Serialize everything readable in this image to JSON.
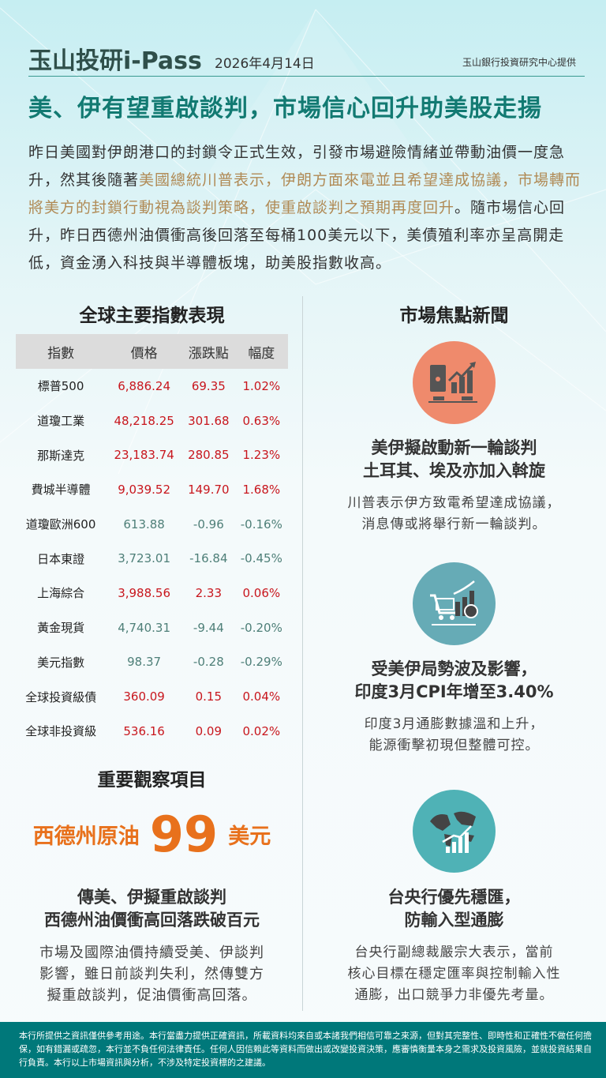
{
  "header": {
    "title": "玉山投研i-Pass",
    "date": "2026年4月14日",
    "source": "玉山銀行投資研究中心提供"
  },
  "headline": "美、伊有望重啟談判，市場信心回升助美股走揚",
  "summary": {
    "p1": "昨日美國對伊朗港口的封鎖令正式生效，引發市場避險情緒並帶動油價一度急升，然其後隨著",
    "highlight": "美國總統川普表示，伊朗方面來電並且希望達成協議，市場轉而將美方的封鎖行動視為談判策略，使重啟談判之預期再度回升",
    "p2": "。隨市場信心回升，昨日西德州油價衝高後回落至每桶100美元以下，美債殖利率亦呈高開走低，資金湧入科技與半導體板塊，助美股指數收高。"
  },
  "indices": {
    "title": "全球主要指數表現",
    "columns": [
      "指數",
      "價格",
      "漲跌點",
      "幅度"
    ],
    "rows": [
      {
        "name": "標普500",
        "price": "6,886.24",
        "change": "69.35",
        "pct": "1.02%",
        "dir": "up"
      },
      {
        "name": "道瓊工業",
        "price": "48,218.25",
        "change": "301.68",
        "pct": "0.63%",
        "dir": "up"
      },
      {
        "name": "那斯達克",
        "price": "23,183.74",
        "change": "280.85",
        "pct": "1.23%",
        "dir": "up"
      },
      {
        "name": "費城半導體",
        "price": "9,039.52",
        "change": "149.70",
        "pct": "1.68%",
        "dir": "up"
      },
      {
        "name": "道瓊歐洲600",
        "price": "613.88",
        "change": "-0.96",
        "pct": "-0.16%",
        "dir": "dn"
      },
      {
        "name": "日本東證",
        "price": "3,723.01",
        "change": "-16.84",
        "pct": "-0.45%",
        "dir": "dn"
      },
      {
        "name": "上海綜合",
        "price": "3,988.56",
        "change": "2.33",
        "pct": "0.06%",
        "dir": "up"
      },
      {
        "name": "黃金現貨",
        "price": "4,740.31",
        "change": "-9.44",
        "pct": "-0.20%",
        "dir": "dn"
      },
      {
        "name": "美元指數",
        "price": "98.37",
        "change": "-0.28",
        "pct": "-0.29%",
        "dir": "dn"
      },
      {
        "name": "全球投資級債",
        "price": "360.09",
        "change": "0.15",
        "pct": "0.04%",
        "dir": "up"
      },
      {
        "name": "全球非投資級",
        "price": "536.16",
        "change": "0.09",
        "pct": "0.02%",
        "dir": "up"
      }
    ]
  },
  "watch": {
    "title": "重要觀察項目",
    "label": "西德州原油",
    "value": "99",
    "unit": "美元",
    "news_title_1": "傳美、伊擬重啟談判",
    "news_title_2": "西德州油價衝高回落跌破百元",
    "desc": [
      "市場及國際油價持續受美、伊談判",
      "影響，雖日前談判失利，然傳雙方",
      "擬重啟談判，促油價衝高回落。"
    ]
  },
  "news": {
    "title": "市場焦點新聞",
    "items": [
      {
        "icon": "oil-barrel-chart-icon",
        "color": "#ef8a6c",
        "title": [
          "美伊擬啟動新一輪談判",
          "土耳其、埃及亦加入斡旋"
        ],
        "desc": [
          "川普表示伊方致電希望達成協議，",
          "消息傳或將舉行新一輪談判。"
        ]
      },
      {
        "icon": "shopping-cart-inflation-icon",
        "color": "#66abb6",
        "title": [
          "受美伊局勢波及影響，",
          "印度3月CPI年增至3.40%"
        ],
        "desc": [
          "印度3月通膨數據溫和上升，",
          "能源衝擊初現但整體可控。"
        ]
      },
      {
        "icon": "globe-growth-chart-icon",
        "color": "#4fb2b6",
        "title": [
          "台央行優先穩匯，",
          "防輸入型通膨"
        ],
        "desc": [
          "台央行副總裁嚴宗大表示，當前",
          "核心目標在穩定匯率與控制輸入性",
          "通膨，出口競爭力非優先考量。"
        ]
      }
    ]
  },
  "footer": "本行所提供之資訊僅供參考用途。本行當盡力提供正確資訊，所載資料均來自或本諸我們相信可靠之來源，但對其完整性、即時性和正確性不做任何擔保，如有錯漏或疏忽，本行並不負任何法律責任。任何人因信賴此等資料而做出或改變投資決策，應審慎衡量本身之需求及投資風險，並就投資結果自行負責。本行以上市場資訊與分析，不涉及特定投資標的之建議。",
  "colors": {
    "up": "#c8161d",
    "down": "#4e7f78",
    "accent": "#127a72",
    "highlight": "#b08a55",
    "footer": "#00787a",
    "value": "#e8711c"
  }
}
